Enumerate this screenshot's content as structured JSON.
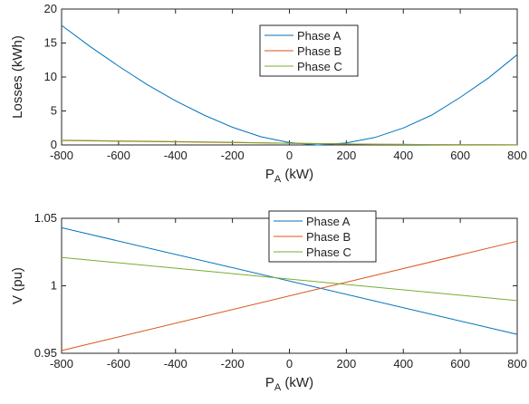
{
  "chart_data": [
    {
      "type": "line",
      "xlabel": "P",
      "xlabel_sub": "A",
      "xlabel_unit": "(kW)",
      "ylabel": "Losses (kWh)",
      "xlim": [
        -800,
        800
      ],
      "ylim": [
        0,
        20
      ],
      "xticks": [
        -800,
        -600,
        -400,
        -200,
        0,
        200,
        400,
        600,
        800
      ],
      "yticks": [
        0,
        5,
        10,
        15,
        20
      ],
      "ytick_labels": [
        "0",
        "5",
        "10",
        "15",
        "20"
      ],
      "legend_position": "top-center",
      "x": [
        -800,
        -700,
        -600,
        -500,
        -400,
        -300,
        -200,
        -100,
        0,
        100,
        200,
        300,
        400,
        500,
        600,
        700,
        800
      ],
      "series": [
        {
          "name": "Phase A",
          "color": "#0072BD",
          "values": [
            17.6,
            14.5,
            11.6,
            8.9,
            6.5,
            4.4,
            2.6,
            1.2,
            0.35,
            0.0,
            0.3,
            1.1,
            2.5,
            4.4,
            7.0,
            9.9,
            13.3
          ]
        },
        {
          "name": "Phase B",
          "color": "#D95319",
          "values": [
            0.65,
            0.6,
            0.55,
            0.5,
            0.45,
            0.4,
            0.35,
            0.3,
            0.25,
            0.2,
            0.15,
            0.1,
            0.08,
            0.05,
            0.03,
            0.02,
            0.01
          ]
        },
        {
          "name": "Phase C",
          "color": "#77AC30",
          "values": [
            0.7,
            0.65,
            0.6,
            0.55,
            0.5,
            0.45,
            0.4,
            0.32,
            0.25,
            0.2,
            0.15,
            0.1,
            0.08,
            0.05,
            0.03,
            0.02,
            0.01
          ]
        }
      ]
    },
    {
      "type": "line",
      "xlabel": "P",
      "xlabel_sub": "A",
      "xlabel_unit": "(kW)",
      "ylabel": "V (pu)",
      "xlim": [
        -800,
        800
      ],
      "ylim": [
        0.95,
        1.05
      ],
      "xticks": [
        -800,
        -600,
        -400,
        -200,
        0,
        200,
        400,
        600,
        800
      ],
      "yticks": [
        0.95,
        1.0,
        1.05
      ],
      "ytick_labels": [
        "0.95",
        "1",
        "1.05"
      ],
      "legend_position": "top-center",
      "x": [
        -800,
        800
      ],
      "series": [
        {
          "name": "Phase A",
          "color": "#0072BD",
          "values": [
            1.043,
            0.964
          ]
        },
        {
          "name": "Phase B",
          "color": "#D95319",
          "values": [
            0.952,
            1.033
          ]
        },
        {
          "name": "Phase C",
          "color": "#77AC30",
          "values": [
            1.021,
            0.989
          ]
        }
      ]
    }
  ]
}
